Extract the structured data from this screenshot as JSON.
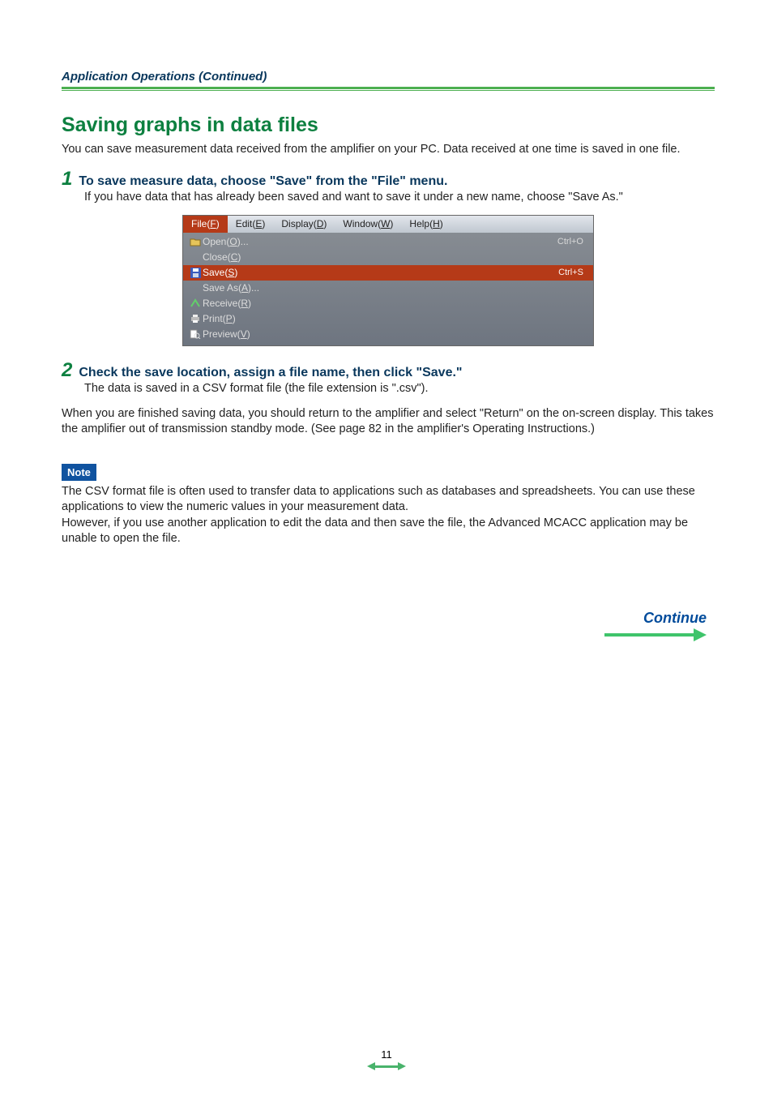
{
  "colors": {
    "brand_green": "#0d8040",
    "rule_green": "#4caf50",
    "heading_blue": "#09375c",
    "note_bg": "#1053a0",
    "continue_blue": "#004b9b",
    "continue_green": "#3fc46b",
    "menubar_active_bg": "#b53a18",
    "dropdown_bg_top": "#8a8f95",
    "dropdown_bg_bottom": "#6e7580",
    "page_bg": "#ffffff"
  },
  "typography": {
    "breadcrumb_fontsize": 15,
    "section_title_fontsize": 25,
    "body_fontsize": 14.5,
    "step_num_fontsize": 24,
    "step_heading_fontsize": 16,
    "menu_fontsize": 12,
    "continue_fontsize": 18,
    "note_fontsize": 13
  },
  "breadcrumb": "Application Operations (Continued)",
  "section_title": "Saving graphs in data files",
  "intro": "You can save measurement data received from the amplifier on your PC. Data received at one time is saved in one file.",
  "steps": [
    {
      "num": "1",
      "heading": "To save measure data, choose \"Save\" from the \"File\" menu.",
      "body": "If you have data that has already been saved and want to save it under a new name, choose \"Save As.\""
    },
    {
      "num": "2",
      "heading": "Check the save location, assign a file name, then click \"Save.\"",
      "body": "The data is saved in a CSV format file (the file extension is \".csv\")."
    }
  ],
  "after_step2": "When you are finished saving data, you should return to the amplifier and select \"Return\" on the on-screen display. This takes the amplifier out of transmission standby mode. (See page 82 in the amplifier's Operating Instructions.)",
  "note_label": "Note",
  "note_body": "The CSV format file is often used to transfer data to applications such as databases and spreadsheets. You can use these applications to view the numeric values in your measurement data.\nHowever, if you use another application to edit the data and then save the file, the Advanced MCACC application may be unable to open the file.",
  "continue_label": "Continue",
  "page_number": "11",
  "screenshot_menu": {
    "menubar": [
      {
        "label": "File",
        "mnemonic": "F",
        "active": true
      },
      {
        "label": "Edit",
        "mnemonic": "E",
        "active": false
      },
      {
        "label": "Display",
        "mnemonic": "D",
        "active": false
      },
      {
        "label": "Window",
        "mnemonic": "W",
        "active": false
      },
      {
        "label": "Help",
        "mnemonic": "H",
        "active": false
      }
    ],
    "items": [
      {
        "icon": "open-folder",
        "label": "Open",
        "mnemonic": "O",
        "suffix": "...",
        "shortcut": "Ctrl+O",
        "selected": false
      },
      {
        "icon": "",
        "label": "Close",
        "mnemonic": "C",
        "suffix": "",
        "shortcut": "",
        "selected": false
      },
      {
        "icon": "save-disk",
        "label": "Save",
        "mnemonic": "S",
        "suffix": "",
        "shortcut": "Ctrl+S",
        "selected": true
      },
      {
        "icon": "",
        "label": "Save As",
        "mnemonic": "A",
        "suffix": "...",
        "shortcut": "",
        "selected": false
      },
      {
        "icon": "receive",
        "label": "Receive",
        "mnemonic": "R",
        "suffix": "",
        "shortcut": "",
        "selected": false
      },
      {
        "icon": "printer",
        "label": "Print",
        "mnemonic": "P",
        "suffix": "",
        "shortcut": "",
        "selected": false
      },
      {
        "icon": "preview",
        "label": "Preview",
        "mnemonic": "V",
        "suffix": "",
        "shortcut": "",
        "selected": false
      }
    ]
  }
}
